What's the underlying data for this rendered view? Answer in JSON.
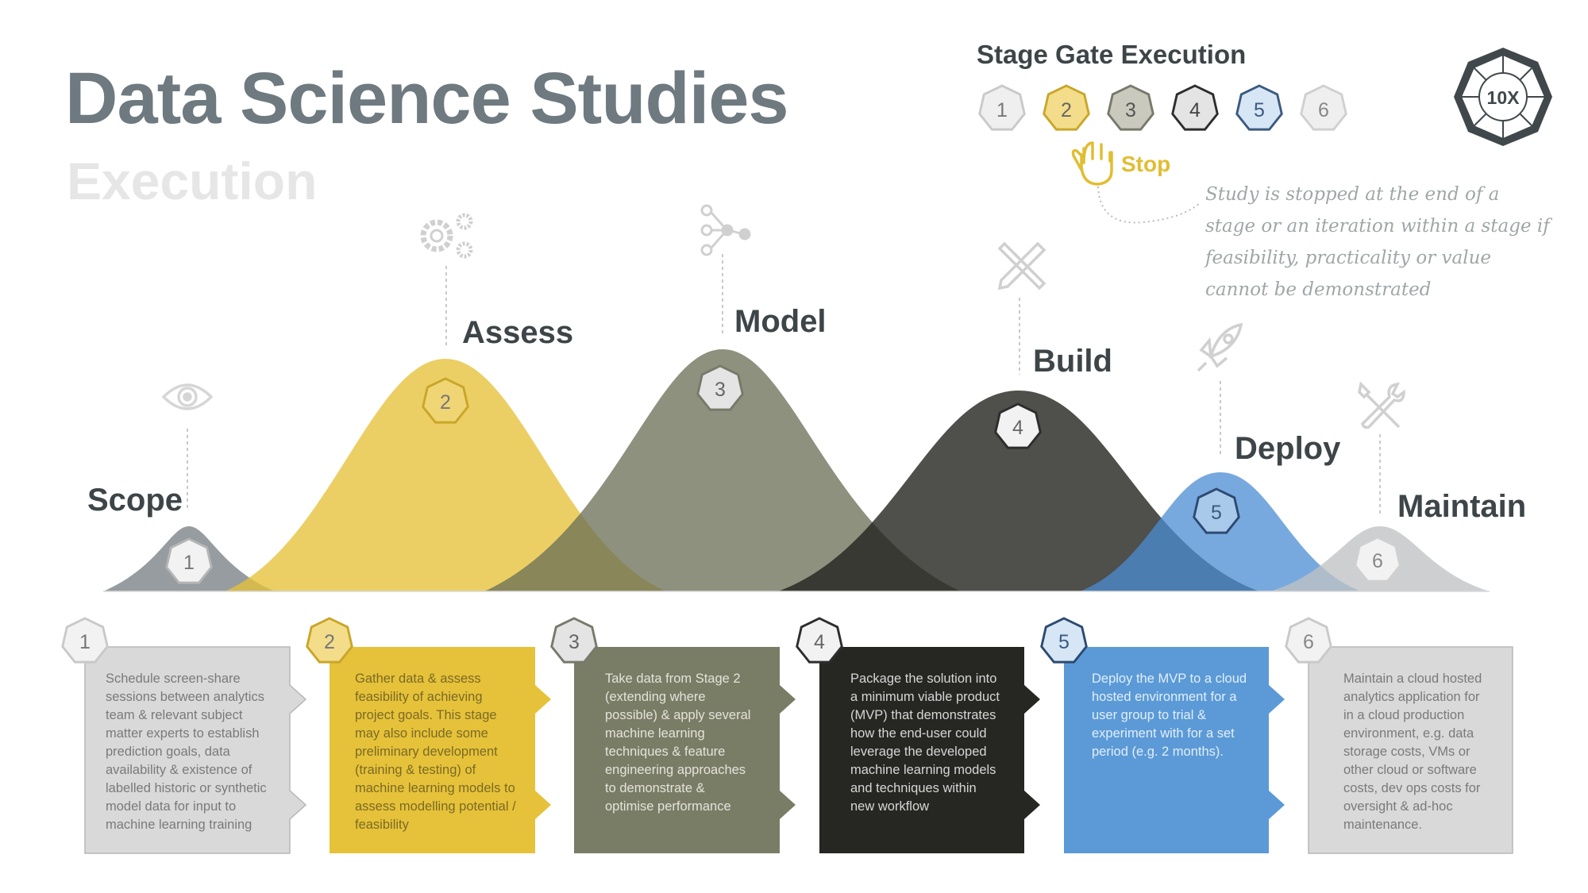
{
  "header": {
    "title": "Data Science Studies",
    "subtitle": "Execution"
  },
  "stage_gate": {
    "title": "Stage Gate Execution",
    "gates": [
      "1",
      "2",
      "3",
      "4",
      "5",
      "6"
    ],
    "stop_label": "Stop",
    "note": "Study is stopped at the end of a stage or an iteration within a stage if feasibility, practicality or value cannot be demonstrated",
    "badge_label": "10X"
  },
  "stages": [
    {
      "number": "1",
      "name": "Scope",
      "icon": "eye-icon",
      "color": "#8b9196",
      "description": "Schedule screen-share\nsessions between analytics\nteam & relevant subject\nmatter experts to establish\nprediction goals, data\navailability & existence of\nlabelled historic or synthetic\nmodel data for input to\nmachine learning training"
    },
    {
      "number": "2",
      "name": "Assess",
      "icon": "gears-icon",
      "color": "#e6c23a",
      "description": "Gather data & assess\nfeasibility of achieving\nproject goals.  This stage\nmay also include some\npreliminary development\n(training & testing) of\nmachine learning models to\nassess modelling potential /\nfeasibility"
    },
    {
      "number": "3",
      "name": "Model",
      "icon": "network-icon",
      "color": "#7a7d66",
      "description": "Take data from Stage 2\n(extending where\npossible) & apply several\nmachine learning\ntechniques & feature\nengineering approaches\nto demonstrate &\noptimise performance"
    },
    {
      "number": "4",
      "name": "Build",
      "icon": "pencil-ruler-icon",
      "color": "#2b2b27",
      "description": "Package the solution into\na minimum viable product\n(MVP) that demonstrates\nhow the end-user could\nleverage the developed\nmachine learning models\nand techniques within\nnew workflow"
    },
    {
      "number": "5",
      "name": "Deploy",
      "icon": "rocket-icon",
      "color": "#5b9ad6",
      "description": "Deploy the MVP to a cloud\nhosted environment for a\nuser group to trial &\nexperiment with for a set\nperiod (e.g. 2 months)."
    },
    {
      "number": "6",
      "name": "Maintain",
      "icon": "tools-icon",
      "color": "#c8cacc",
      "description": "Maintain a cloud hosted\nanalytics application for\nin a cloud production\nenvironment, e.g. data\nstorage costs, VMs or\nother cloud or software\ncosts, dev ops costs for\noversight & ad-hoc\nmaintenance."
    }
  ]
}
